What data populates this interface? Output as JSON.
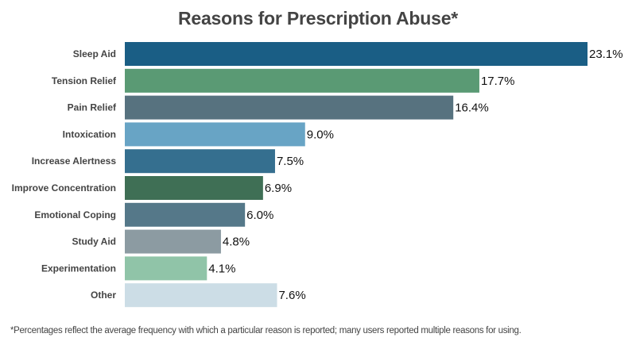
{
  "chart_data": {
    "type": "bar",
    "orientation": "horizontal",
    "title": "Reasons for Prescription Abuse*",
    "xlabel": "",
    "ylabel": "",
    "value_suffix": "%",
    "xlim": [
      0,
      23.1
    ],
    "grid": false,
    "legend": "none",
    "categories": [
      "Sleep Aid",
      "Tension Relief",
      "Pain Relief",
      "Intoxication",
      "Increase Alertness",
      "Improve Concentration",
      "Emotional Coping",
      "Study Aid",
      "Experimentation",
      "Other"
    ],
    "values": [
      23.1,
      17.7,
      16.4,
      9.0,
      7.5,
      6.9,
      6.0,
      4.8,
      4.1,
      7.6
    ],
    "value_labels": [
      "23.1%",
      "17.7%",
      "16.4%",
      "9.0%",
      "7.5%",
      "6.9%",
      "6.0%",
      "4.8%",
      "4.1%",
      "7.6%"
    ],
    "colors": [
      "#1a5e85",
      "#5a9a74",
      "#57727f",
      "#68a4c5",
      "#356f8f",
      "#3f6f55",
      "#557889",
      "#8c9ba2",
      "#90c4a8",
      "#ccdde6"
    ],
    "footnote": "*Percentages reflect the average frequency with which a particular reason is reported; many users reported multiple reasons for using."
  }
}
